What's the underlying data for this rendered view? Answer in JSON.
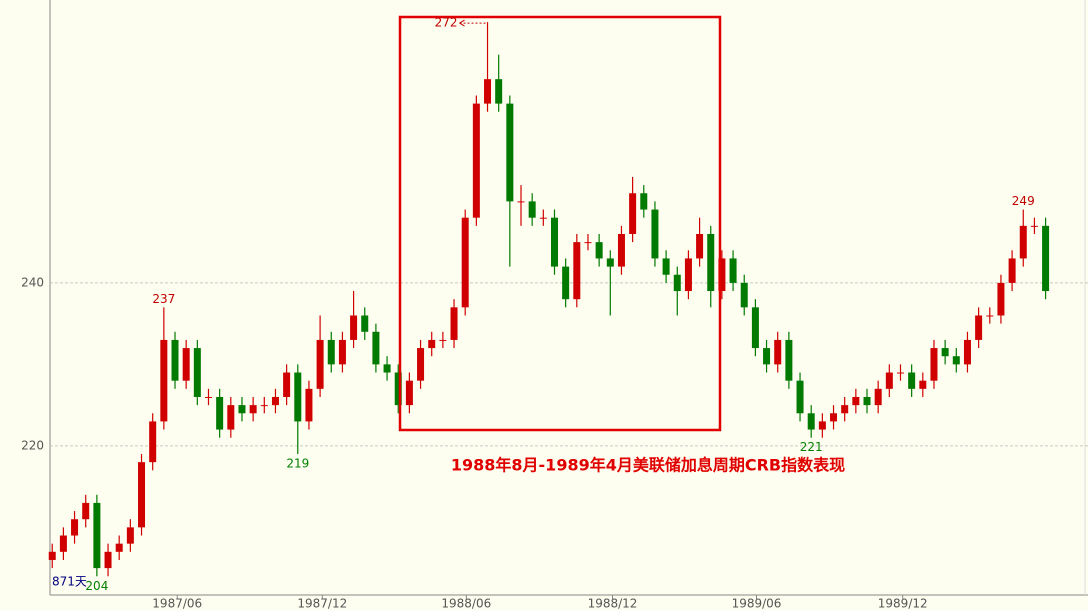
{
  "chart_data": {
    "type": "candlestick",
    "caption": "1988年8月-1989年4月美联储加息周期CRB指数表现",
    "period_label": "871天",
    "up_color": "#d00000",
    "down_color": "#007a00",
    "grid": true,
    "xlim": [
      -0.2,
      92.8
    ],
    "ylim": [
      201.7,
      274.1
    ],
    "yticks": [
      220,
      240
    ],
    "xticks": [
      {
        "value": 11.2,
        "label": "1987/06"
      },
      {
        "value": 24.2,
        "label": "1987/12"
      },
      {
        "value": 37.1,
        "label": "1988/06"
      },
      {
        "value": 50.2,
        "label": "1988/12"
      },
      {
        "value": 63.1,
        "label": "1989/06"
      },
      {
        "value": 76.2,
        "label": "1989/12"
      }
    ],
    "open": [
      206,
      207,
      209,
      211,
      213,
      205,
      207,
      208,
      210,
      218,
      223,
      233,
      228,
      232,
      226,
      226,
      222,
      225,
      224,
      225,
      225,
      226,
      229,
      223,
      227,
      233,
      230,
      233,
      236,
      234,
      230,
      229,
      225,
      228,
      232,
      233,
      233,
      237,
      248,
      262,
      265,
      262,
      250,
      250,
      248,
      248,
      242,
      238,
      245,
      245,
      243,
      242,
      246,
      251,
      249,
      243,
      241,
      239,
      243,
      246,
      239,
      243,
      240,
      237,
      232,
      230,
      233,
      228,
      224,
      222,
      223,
      224,
      225,
      226,
      225,
      227,
      229,
      229,
      227,
      228,
      232,
      231,
      230,
      233,
      236,
      236,
      240,
      243,
      247,
      247
    ],
    "high": [
      208,
      210,
      212,
      214,
      214,
      208,
      209,
      211,
      219,
      224,
      237,
      234,
      233,
      233,
      227,
      227,
      226,
      226,
      226,
      226,
      227,
      230,
      230,
      228,
      236,
      234,
      234,
      239,
      237,
      235,
      231,
      230,
      229,
      233,
      234,
      234,
      238,
      249,
      263,
      272,
      268,
      263,
      252,
      251,
      249,
      249,
      243,
      246,
      246,
      246,
      244,
      247,
      253,
      252,
      250,
      244,
      242,
      244,
      248,
      247,
      244,
      244,
      241,
      238,
      233,
      234,
      234,
      229,
      225,
      224,
      225,
      226,
      227,
      227,
      228,
      230,
      230,
      230,
      229,
      233,
      233,
      232,
      234,
      237,
      237,
      241,
      244,
      249,
      248,
      248
    ],
    "low": [
      205,
      206,
      208,
      210,
      204,
      204,
      206,
      207,
      209,
      217,
      222,
      227,
      227,
      225,
      225,
      221,
      221,
      223,
      223,
      224,
      224,
      225,
      219,
      222,
      226,
      229,
      229,
      232,
      233,
      229,
      228,
      224,
      224,
      227,
      231,
      232,
      232,
      236,
      247,
      261,
      261,
      242,
      247,
      247,
      247,
      241,
      237,
      237,
      244,
      242,
      236,
      241,
      245,
      248,
      242,
      240,
      236,
      238,
      242,
      237,
      238,
      239,
      236,
      231,
      229,
      229,
      227,
      223,
      221,
      221,
      222,
      223,
      224,
      224,
      224,
      226,
      228,
      226,
      226,
      227,
      230,
      229,
      229,
      232,
      235,
      235,
      239,
      242,
      246,
      238
    ],
    "close": [
      207,
      209,
      211,
      213,
      205,
      207,
      208,
      210,
      218,
      223,
      233,
      228,
      232,
      226,
      226,
      222,
      225,
      224,
      225,
      225,
      226,
      229,
      223,
      227,
      233,
      230,
      233,
      236,
      234,
      230,
      229,
      225,
      228,
      232,
      233,
      233,
      237,
      248,
      262,
      265,
      262,
      250,
      250,
      248,
      248,
      242,
      238,
      245,
      245,
      243,
      242,
      246,
      251,
      249,
      243,
      241,
      239,
      243,
      246,
      239,
      243,
      240,
      237,
      232,
      230,
      233,
      228,
      224,
      222,
      223,
      224,
      225,
      226,
      225,
      227,
      229,
      229,
      227,
      228,
      232,
      231,
      230,
      233,
      236,
      236,
      240,
      243,
      247,
      247,
      239
    ],
    "annotations": [
      {
        "x": 39,
        "value": 272,
        "position": "left",
        "color": "#c00000"
      },
      {
        "x": 10,
        "value": 237,
        "position": "above",
        "color": "#c00000"
      },
      {
        "x": 22,
        "value": 219,
        "position": "below",
        "color": "#008000"
      },
      {
        "x": 4,
        "value": 204,
        "position": "below",
        "color": "#008000"
      },
      {
        "x": 68,
        "value": 221,
        "position": "below",
        "color": "#008000"
      },
      {
        "x": 87,
        "value": 249,
        "position": "above",
        "color": "#c00000"
      }
    ]
  }
}
